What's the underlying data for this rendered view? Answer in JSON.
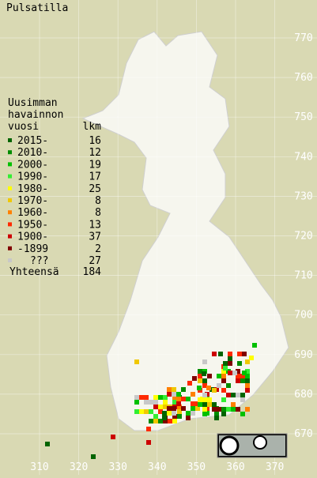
{
  "title": "Pulsatilla",
  "legend": {
    "header": [
      "Uusimman",
      "havainnon",
      "vuosi"
    ],
    "count_header": "lkm",
    "items": [
      {
        "label": "2015-",
        "color": "#006400",
        "count": 16
      },
      {
        "label": "2010-",
        "color": "#008c00",
        "count": 12
      },
      {
        "label": "2000-",
        "color": "#00c000",
        "count": 19
      },
      {
        "label": "1990-",
        "color": "#33ee33",
        "count": 17
      },
      {
        "label": "1980-",
        "color": "#ffff00",
        "count": 25
      },
      {
        "label": "1970-",
        "color": "#f0c800",
        "count": 8
      },
      {
        "label": "1960-",
        "color": "#ff8000",
        "count": 8
      },
      {
        "label": "1950-",
        "color": "#ff2a00",
        "count": 13
      },
      {
        "label": "1900-",
        "color": "#cc0000",
        "count": 37
      },
      {
        "label": "-1899",
        "color": "#800000",
        "count": 2
      },
      {
        "label": "???",
        "color": "#c8c8c8",
        "count": 27
      }
    ],
    "total_label": "Yhteensä",
    "total": 184
  },
  "x_labels": [
    "310",
    "320",
    "330",
    "340",
    "350",
    "360",
    "370"
  ],
  "y_labels": [
    "770",
    "760",
    "750",
    "740",
    "730",
    "720",
    "710",
    "700",
    "690",
    "680",
    "670"
  ]
}
